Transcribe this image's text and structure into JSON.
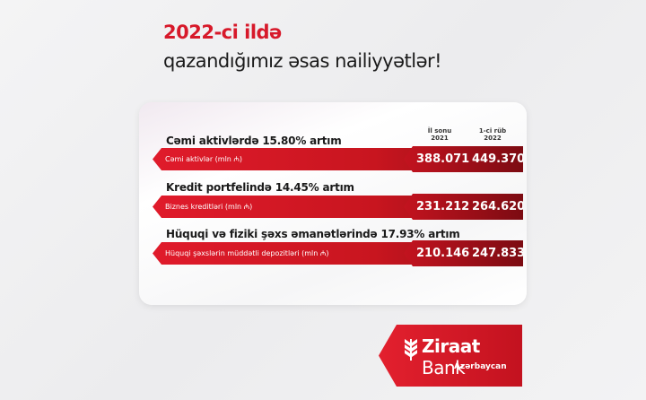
{
  "heading": {
    "line1": "2022-ci ildə",
    "line2": "qazandığımız əsas nailiyyətlər!"
  },
  "columns": [
    "İl sonu\n2021",
    "1-ci rüb\n2022"
  ],
  "columns_lines": [
    [
      "İl sonu",
      "2021"
    ],
    [
      "1-ci rüb",
      "2022"
    ]
  ],
  "rows": [
    {
      "title": "Cəmi aktivlərdə 15.80% artım",
      "label": "Cəmi aktivlər (mln ₼)",
      "v2021": "388.071",
      "v2022": "449.370"
    },
    {
      "title": "Kredit portfelində 14.45% artım",
      "label": "Biznes kreditləri (mln ₼)",
      "v2021": "231.212",
      "v2022": "264.620"
    },
    {
      "title": "Hüquqi və fiziki şəxs əmanətlərində 17.93% artım",
      "label": "Hüquqi şəxslərin müddətli depozitləri (mln ₼)",
      "v2021": "210.146",
      "v2022": "247.833"
    }
  ],
  "logo": {
    "name_bold": "Ziraat",
    "name_regular": " Bank",
    "sub": "Azərbaycan",
    "icon": "wheat-icon"
  },
  "colors": {
    "brand_red": "#d7192a",
    "dark_red": "#7c0b12"
  }
}
